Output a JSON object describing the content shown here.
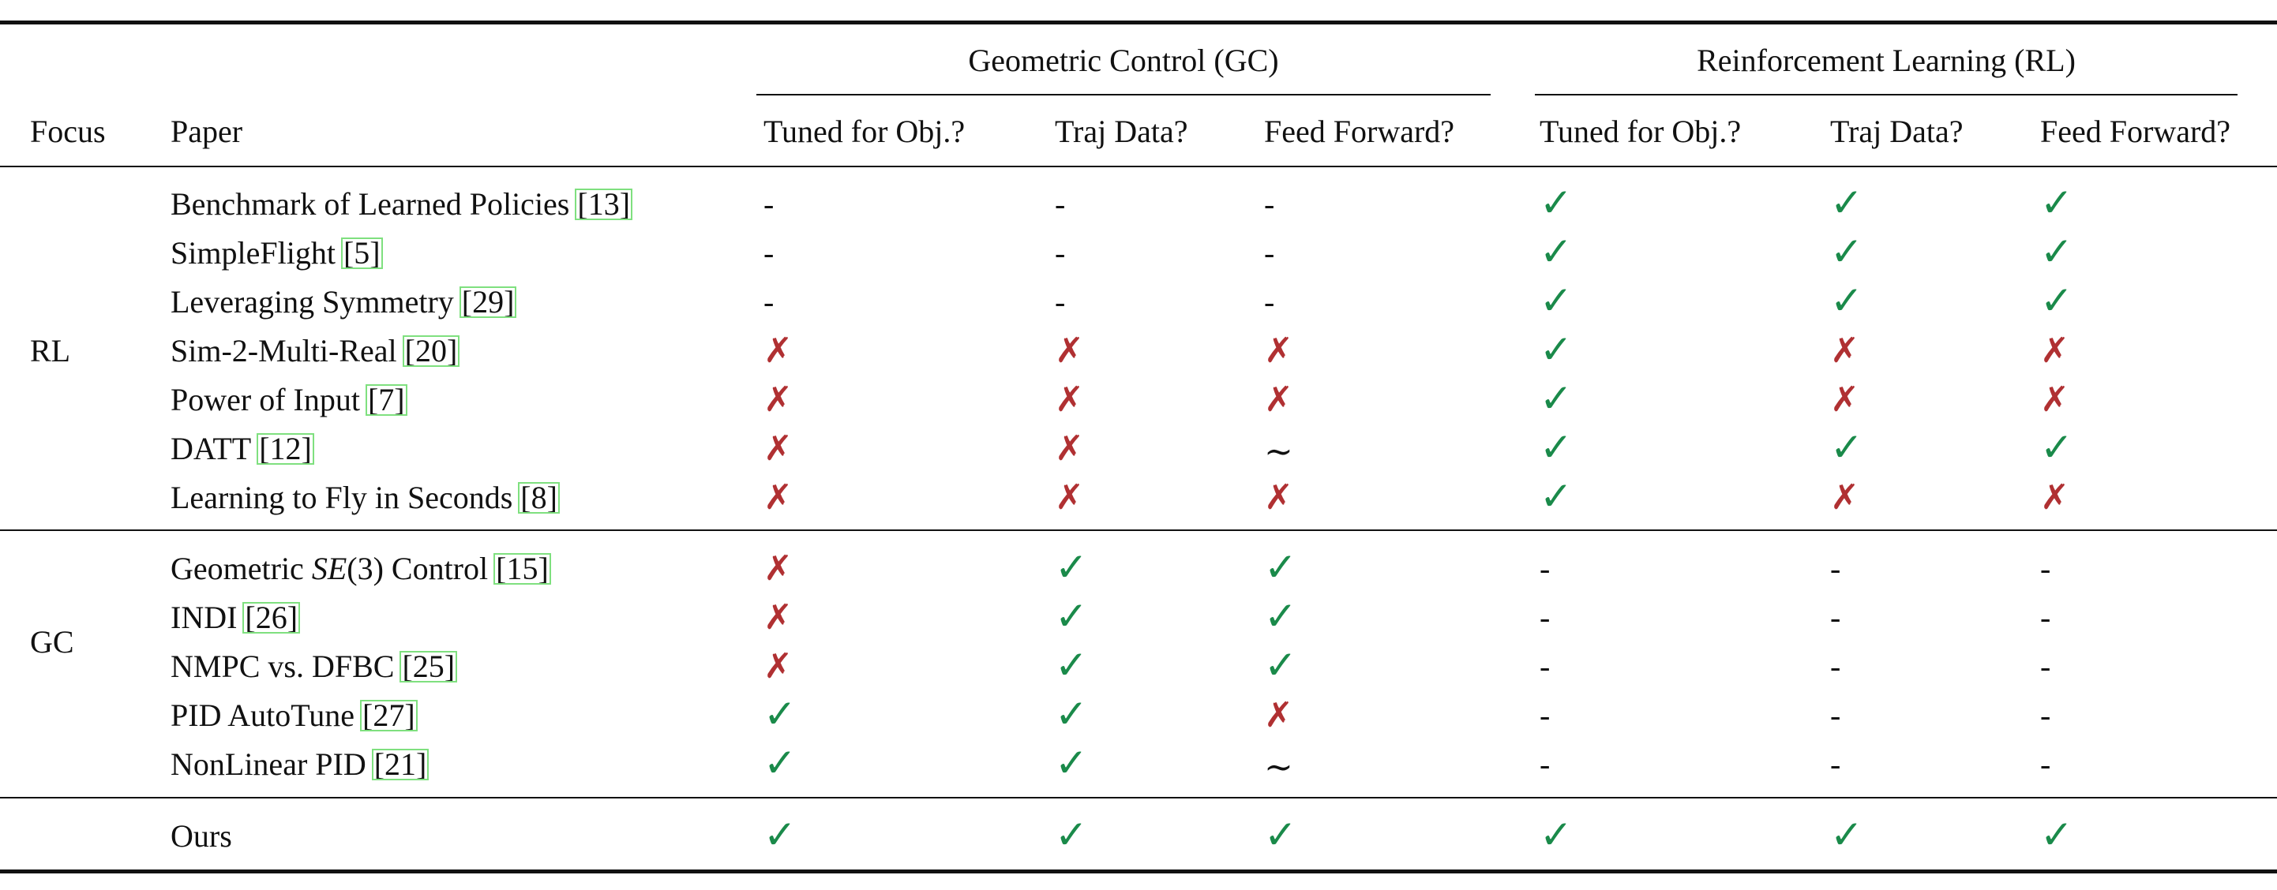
{
  "table": {
    "group_headers": {
      "gc": "Geometric Control (GC)",
      "rl": "Reinforcement Learning (RL)"
    },
    "columns": {
      "focus": "Focus",
      "paper": "Paper",
      "gc_tuned": "Tuned for Obj.?",
      "gc_traj": "Traj Data?",
      "gc_ff": "Feed Forward?",
      "rl_tuned": "Tuned for Obj.?",
      "rl_traj": "Traj Data?",
      "rl_ff": "Feed Forward?"
    },
    "symbols": {
      "yes": "✓",
      "no": "✗",
      "na": "-",
      "partial": "∼"
    },
    "groups": [
      {
        "focus": "RL",
        "rows": [
          {
            "paper": "Benchmark of Learned Policies",
            "cite": "[13]",
            "values": [
              "na",
              "na",
              "na",
              "yes",
              "yes",
              "yes"
            ]
          },
          {
            "paper": "SimpleFlight",
            "cite": "[5]",
            "values": [
              "na",
              "na",
              "na",
              "yes",
              "yes",
              "yes"
            ]
          },
          {
            "paper": "Leveraging Symmetry",
            "cite": "[29]",
            "values": [
              "na",
              "na",
              "na",
              "yes",
              "yes",
              "yes"
            ]
          },
          {
            "paper": "Sim-2-Multi-Real",
            "cite": "[20]",
            "values": [
              "no",
              "no",
              "no",
              "yes",
              "no",
              "no"
            ]
          },
          {
            "paper": "Power of Input",
            "cite": "[7]",
            "values": [
              "no",
              "no",
              "no",
              "yes",
              "no",
              "no"
            ]
          },
          {
            "paper": "DATT",
            "cite": "[12]",
            "values": [
              "no",
              "no",
              "partial",
              "yes",
              "yes",
              "yes"
            ]
          },
          {
            "paper": "Learning to Fly in Seconds",
            "cite": "[8]",
            "values": [
              "no",
              "no",
              "no",
              "yes",
              "no",
              "no"
            ]
          }
        ]
      },
      {
        "focus": "GC",
        "rows": [
          {
            "paper": "Geometric SE(3) Control",
            "paper_pre": "Geometric ",
            "paper_math": "SE",
            "paper_post": "(3) Control",
            "cite": "[15]",
            "values": [
              "no",
              "yes",
              "yes",
              "na",
              "na",
              "na"
            ]
          },
          {
            "paper": "INDI",
            "cite": "[26]",
            "values": [
              "no",
              "yes",
              "yes",
              "na",
              "na",
              "na"
            ]
          },
          {
            "paper": "NMPC vs. DFBC",
            "cite": "[25]",
            "values": [
              "no",
              "yes",
              "yes",
              "na",
              "na",
              "na"
            ]
          },
          {
            "paper": "PID AutoTune",
            "cite": "[27]",
            "values": [
              "yes",
              "yes",
              "no",
              "na",
              "na",
              "na"
            ]
          },
          {
            "paper": "NonLinear PID",
            "cite": "[21]",
            "values": [
              "yes",
              "yes",
              "partial",
              "na",
              "na",
              "na"
            ]
          }
        ]
      },
      {
        "focus": "",
        "rows": [
          {
            "paper": "Ours",
            "cite": "",
            "values": [
              "yes",
              "yes",
              "yes",
              "yes",
              "yes",
              "yes"
            ]
          }
        ]
      }
    ]
  }
}
